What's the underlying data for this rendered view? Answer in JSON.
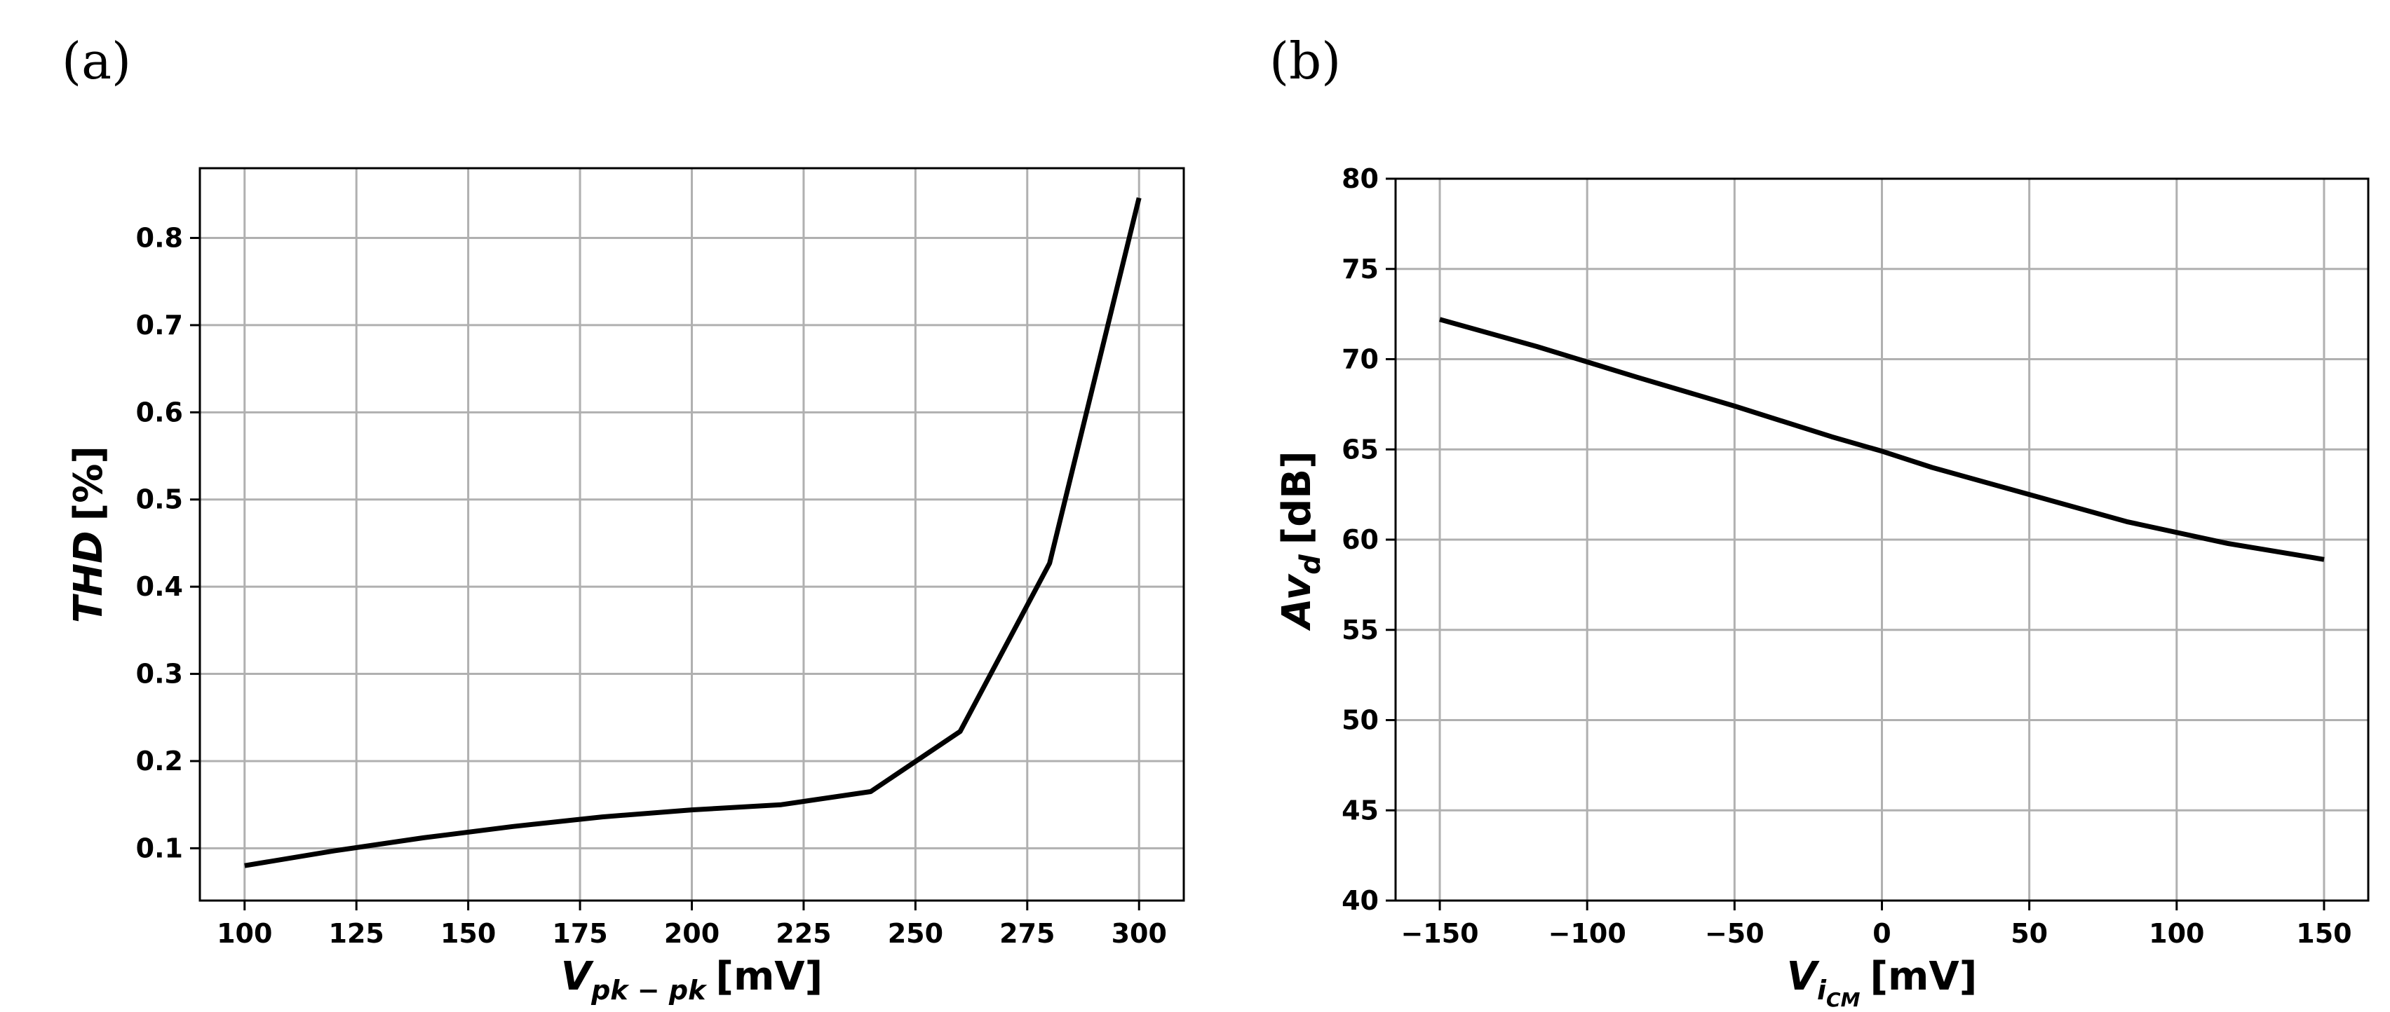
{
  "chart_data": [
    {
      "panel_label": "(a)",
      "type": "line",
      "title": "",
      "xlabel": {
        "main": "V",
        "sub": "pk − pk",
        "unit": "[mV]"
      },
      "ylabel": {
        "main": "THD",
        "sub": "",
        "unit": "[%]"
      },
      "xlim": [
        90,
        310
      ],
      "ylim": [
        0.04,
        0.88
      ],
      "xticks": [
        100,
        125,
        150,
        175,
        200,
        225,
        250,
        275,
        300
      ],
      "yticks": [
        0.1,
        0.2,
        0.3,
        0.4,
        0.5,
        0.6,
        0.7,
        0.8
      ],
      "xtick_labels": [
        "100",
        "125",
        "150",
        "175",
        "200",
        "225",
        "250",
        "275",
        "300"
      ],
      "ytick_labels": [
        "0.1",
        "0.2",
        "0.3",
        "0.4",
        "0.5",
        "0.6",
        "0.7",
        "0.8"
      ],
      "grid": true,
      "series": [
        {
          "name": "THD",
          "color": "#000000",
          "x": [
            100,
            120,
            140,
            160,
            180,
            200,
            220,
            240,
            260,
            280,
            300
          ],
          "y": [
            0.08,
            0.097,
            0.112,
            0.125,
            0.136,
            0.144,
            0.15,
            0.165,
            0.234,
            0.427,
            0.846
          ]
        }
      ]
    },
    {
      "panel_label": "(b)",
      "type": "line",
      "title": "",
      "xlabel": {
        "main": "V",
        "sub": "i",
        "subsub": "CM",
        "unit": "[mV]"
      },
      "ylabel": {
        "main": "Av",
        "sub": "d",
        "unit": "[dB]"
      },
      "xlim": [
        -165,
        165
      ],
      "ylim": [
        40,
        80
      ],
      "xticks": [
        -150,
        -100,
        -50,
        0,
        50,
        100,
        150
      ],
      "yticks": [
        40,
        45,
        50,
        55,
        60,
        65,
        70,
        75,
        80
      ],
      "xtick_labels": [
        "−150",
        "−100",
        "−50",
        "0",
        "50",
        "100",
        "150"
      ],
      "ytick_labels": [
        "40",
        "45",
        "50",
        "55",
        "60",
        "65",
        "70",
        "75",
        "80"
      ],
      "grid": true,
      "series": [
        {
          "name": "Av_d",
          "color": "#000000",
          "x": [
            -150,
            -117,
            -83,
            -50,
            -17,
            0,
            17,
            50,
            83,
            117,
            150
          ],
          "y": [
            72.2,
            70.7,
            69.0,
            67.4,
            65.7,
            64.9,
            64.0,
            62.5,
            61.0,
            59.8,
            58.9
          ]
        }
      ]
    }
  ]
}
